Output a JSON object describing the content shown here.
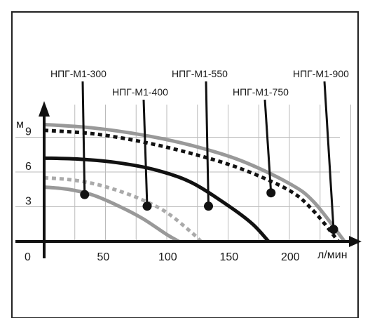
{
  "chart_data": {
    "type": "line",
    "xlabel": "л/мин",
    "ylabel": "м",
    "x_ticks": [
      {
        "value": 0,
        "label": "0"
      },
      {
        "value": 50,
        "label": "50"
      },
      {
        "value": 100,
        "label": "100"
      },
      {
        "value": 150,
        "label": "150"
      },
      {
        "value": 200,
        "label": "200"
      }
    ],
    "y_ticks": [
      {
        "value": 3,
        "label": "3"
      },
      {
        "value": 6,
        "label": "6"
      },
      {
        "value": 9,
        "label": "9"
      }
    ],
    "xlim": [
      0,
      250
    ],
    "ylim": [
      0,
      11.5
    ],
    "grid": true,
    "series": [
      {
        "name": "НПГ-М1-300",
        "color": "#999999",
        "dash": "solid",
        "x": [
          0,
          20,
          40,
          60,
          80,
          100,
          110
        ],
        "y": [
          4.7,
          4.5,
          4.0,
          3.1,
          2.0,
          0.6,
          0.0
        ],
        "marker": {
          "x": 33,
          "y": 4.05
        }
      },
      {
        "name": "НПГ-М1-400",
        "color": "#aaaaaa",
        "dash": "dotted",
        "x": [
          0,
          20,
          40,
          60,
          80,
          100,
          120,
          128
        ],
        "y": [
          5.5,
          5.35,
          5.0,
          4.4,
          3.6,
          2.5,
          0.8,
          0.0
        ],
        "marker": {
          "x": 84,
          "y": 3.05
        }
      },
      {
        "name": "НПГ-М1-550",
        "color": "#111111",
        "dash": "solid",
        "x": [
          0,
          30,
          60,
          90,
          120,
          150,
          170,
          183
        ],
        "y": [
          7.2,
          7.1,
          6.8,
          6.2,
          5.1,
          3.1,
          1.5,
          0.0
        ],
        "marker": {
          "x": 134,
          "y": 3.05
        }
      },
      {
        "name": "НПГ-М1-750",
        "color": "#111111",
        "dash": "dotted",
        "x": [
          0,
          40,
          80,
          120,
          160,
          200,
          220,
          240
        ],
        "y": [
          9.6,
          9.3,
          8.6,
          7.6,
          6.3,
          4.4,
          2.6,
          0.0
        ],
        "marker": {
          "x": 185,
          "y": 4.2
        }
      },
      {
        "name": "НПГ-М1-900",
        "color": "#999999",
        "dash": "solid",
        "x": [
          0,
          40,
          80,
          120,
          160,
          200,
          220,
          245
        ],
        "y": [
          10.1,
          9.8,
          9.2,
          8.3,
          7.0,
          5.0,
          3.4,
          0.0
        ],
        "marker": {
          "x": 236,
          "y": 1.05
        }
      }
    ]
  }
}
